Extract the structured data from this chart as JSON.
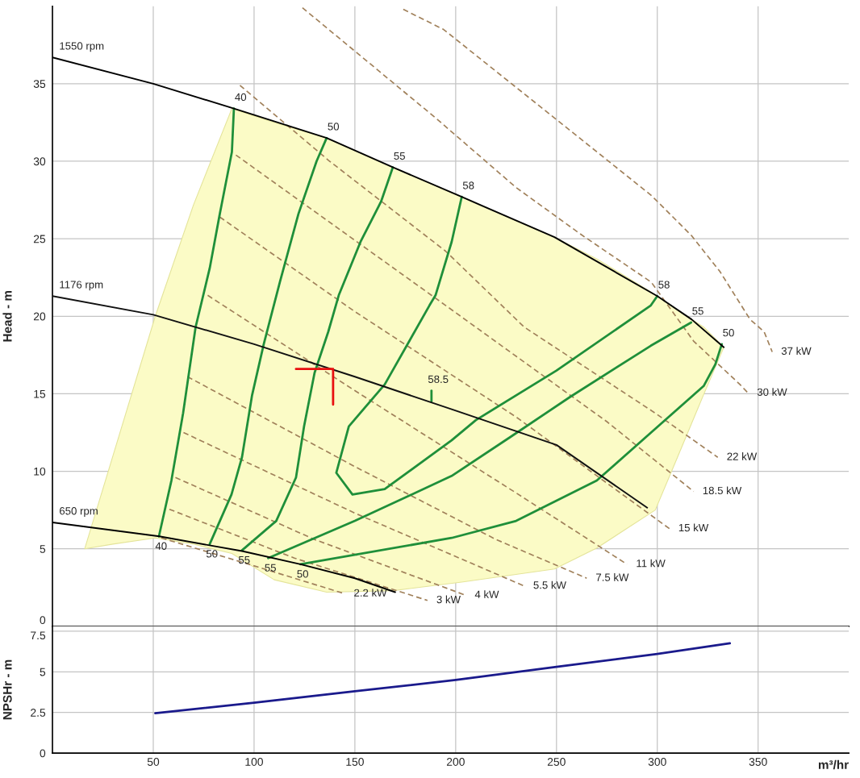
{
  "chart_data": [
    {
      "type": "line",
      "ylabel": "Head - m",
      "xlim": [
        0,
        395
      ],
      "ylim": [
        0,
        40
      ],
      "xticks": [
        50,
        100,
        150,
        200,
        250,
        300,
        350
      ],
      "yticks": [
        0,
        5,
        10,
        15,
        20,
        25,
        30,
        35
      ],
      "tick_labels": "y",
      "grid": true,
      "series": [
        {
          "type": "area",
          "color": "#fbfbc6",
          "x": [
            16,
            30,
            51,
            70,
            89,
            110,
            136,
            169,
            203,
            249,
            270,
            299,
            310,
            323,
            333
          ],
          "values": [
            null,
            null,
            null,
            null,
            null,
            null,
            null,
            null,
            null,
            null,
            null,
            null,
            null,
            null,
            null
          ],
          "upper": [
            5.0,
            11,
            20,
            27.2,
            33.4,
            32.5,
            31.5,
            29.6,
            27.7,
            25.1,
            23.7,
            21.4,
            20.4,
            19.3,
            18.0
          ],
          "lower": [
            5.0,
            5.3,
            5.7,
            5.3,
            4.7,
            3.0,
            2.2,
            2.3,
            2.85,
            3.7,
            5.05,
            7.5,
            10.9,
            14.95,
            18.0
          ]
        },
        {
          "type": "line",
          "color": "#a0805a",
          "line_style": "dashed",
          "x": [
            174,
            194,
            247,
            297,
            317,
            331,
            346,
            353,
            357
          ],
          "values": [
            39.8,
            38.5,
            33.0,
            27.8,
            25.2,
            22.9,
            19.8,
            19.0,
            17.7
          ]
        },
        {
          "type": "line",
          "color": "#a0805a",
          "line_style": "dashed",
          "x": [
            124,
            190,
            230,
            263,
            297,
            318,
            341,
            345
          ],
          "values": [
            39.9,
            32.8,
            28.3,
            25.2,
            22.2,
            18.4,
            15.6,
            15.05
          ]
        },
        {
          "type": "line",
          "color": "#a0805a",
          "line_style": "dashed",
          "x": [
            93,
            137,
            195,
            234,
            299,
            330
          ],
          "values": [
            34.9,
            30.05,
            24.2,
            19.3,
            13.75,
            10.9
          ]
        },
        {
          "type": "line",
          "color": "#a0805a",
          "line_style": "dashed",
          "x": [
            91,
            195,
            275,
            318
          ],
          "values": [
            30.4,
            20.7,
            13.2,
            8.7
          ]
        },
        {
          "type": "line",
          "color": "#a0805a",
          "line_style": "dashed",
          "x": [
            83,
            150,
            230,
            306
          ],
          "values": [
            26.4,
            20.3,
            13.5,
            6.3
          ]
        },
        {
          "type": "line",
          "color": "#a0805a",
          "line_style": "dashed",
          "x": [
            77,
            150,
            230,
            285
          ],
          "values": [
            21.35,
            15.2,
            8.6,
            4.0
          ]
        },
        {
          "type": "line",
          "color": "#a0805a",
          "line_style": "dashed",
          "x": [
            67,
            150,
            220,
            265
          ],
          "values": [
            16.1,
            10.3,
            5.6,
            3.1
          ]
        },
        {
          "type": "line",
          "color": "#a0805a",
          "line_style": "dashed",
          "x": [
            65,
            150,
            234
          ],
          "values": [
            12.5,
            7.3,
            2.6
          ]
        },
        {
          "type": "line",
          "color": "#a0805a",
          "line_style": "dashed",
          "x": [
            61,
            130,
            205
          ],
          "values": [
            9.6,
            5.6,
            2.0
          ]
        },
        {
          "type": "line",
          "color": "#a0805a",
          "line_style": "dashed",
          "x": [
            58,
            120,
            186
          ],
          "values": [
            7.55,
            4.4,
            1.67
          ]
        },
        {
          "type": "line",
          "color": "#a0805a",
          "line_style": "dashed",
          "x": [
            54,
            100,
            145
          ],
          "values": [
            5.7,
            3.9,
            2.1
          ]
        },
        {
          "type": "line",
          "color": "#1f8f3a",
          "x": [
            90,
            89,
            83,
            78,
            71,
            64.8,
            59,
            52.8
          ],
          "values": [
            33.4,
            30.6,
            26.6,
            23.1,
            19.3,
            13.75,
            9.4,
            5.8
          ]
        },
        {
          "type": "line",
          "color": "#1f8f3a",
          "x": [
            136,
            131,
            122,
            112.8,
            104.8,
            99,
            94,
            88.8,
            78
          ],
          "values": [
            31.5,
            30.0,
            26.6,
            22.2,
            18.2,
            14.9,
            10.9,
            8.5,
            5.3
          ]
        },
        {
          "type": "line",
          "color": "#1f8f3a",
          "x": [
            168.8,
            163,
            152.8,
            142,
            136.8,
            130,
            124.8,
            120.8,
            111,
            94
          ],
          "values": [
            29.6,
            27.4,
            24.8,
            21.35,
            19.0,
            16.35,
            12.9,
            9.6,
            6.8,
            4.9
          ]
        },
        {
          "type": "line",
          "color": "#1f8f3a",
          "x": [
            203,
            198,
            190,
            187,
            164.8,
            147,
            140.8,
            148.8,
            164.8,
            198,
            210,
            250,
            296.8,
            300
          ],
          "values": [
            27.7,
            24.8,
            21.35,
            20.7,
            15.6,
            12.9,
            9.9,
            8.5,
            8.85,
            12.0,
            13.3,
            16.5,
            20.7,
            21.3
          ]
        },
        {
          "type": "line",
          "color": "#1f8f3a",
          "x": [
            107,
            150,
            198,
            227,
            256.8,
            296.8,
            316.8
          ],
          "values": [
            4.4,
            6.8,
            9.7,
            12.2,
            14.8,
            18.1,
            19.6
          ]
        },
        {
          "type": "line",
          "color": "#1f8f3a",
          "x": [
            123,
            198,
            230,
            270,
            303,
            323,
            328.8,
            332
          ],
          "values": [
            4.0,
            5.7,
            6.8,
            9.4,
            13.2,
            15.5,
            16.9,
            18.2
          ]
        },
        {
          "type": "line",
          "color": "#1f8f3a",
          "x": [
            188,
            188
          ],
          "values": [
            15.2,
            14.5
          ]
        },
        {
          "type": "line",
          "color": "#000000",
          "x": [
            0,
            50,
            90,
            136,
            169,
            203,
            249,
            300,
            317,
            333
          ],
          "values": [
            36.7,
            35.0,
            33.4,
            31.5,
            29.6,
            27.7,
            25.1,
            21.3,
            19.8,
            18.0
          ]
        },
        {
          "type": "line",
          "color": "#111111",
          "x": [
            0,
            50,
            100,
            150,
            198,
            250,
            295
          ],
          "values": [
            21.3,
            20.1,
            18.2,
            16.1,
            14.0,
            11.7,
            7.65
          ]
        },
        {
          "type": "line",
          "color": "#000000",
          "x": [
            0,
            53,
            94,
            123,
            150,
            170
          ],
          "values": [
            6.7,
            5.8,
            4.85,
            4.0,
            3.1,
            2.2
          ]
        },
        {
          "type": "line",
          "color": "#e81010",
          "x": [
            120.8,
            139.2,
            139.2
          ],
          "values": [
            16.6,
            16.6,
            14.3
          ]
        }
      ],
      "annotations": [
        {
          "text": "1550 rpm",
          "x": 0,
          "y": 36.7
        },
        {
          "text": "1176 rpm",
          "x": 0,
          "y": 21.3
        },
        {
          "text": "650 rpm",
          "x": 0,
          "y": 6.7
        },
        {
          "text": "40",
          "x": 90,
          "y": 33.4
        },
        {
          "text": "50",
          "x": 136,
          "y": 31.5
        },
        {
          "text": "55",
          "x": 168.8,
          "y": 29.6
        },
        {
          "text": "58",
          "x": 203,
          "y": 27.7
        },
        {
          "text": "58",
          "x": 300,
          "y": 21.3
        },
        {
          "text": "55",
          "x": 316.8,
          "y": 19.6
        },
        {
          "text": "50",
          "x": 332,
          "y": 18.2
        },
        {
          "text": "58.5",
          "x": 188,
          "y": 15.2
        },
        {
          "text": "40",
          "x": 52.8,
          "y": 5.8
        },
        {
          "text": "50",
          "x": 78,
          "y": 5.3
        },
        {
          "text": "55",
          "x": 94,
          "y": 4.9
        },
        {
          "text": "55",
          "x": 107,
          "y": 4.4
        },
        {
          "text": "50",
          "x": 123,
          "y": 4.0
        },
        {
          "text": "2.2 kW",
          "x": 145,
          "y": 2.1
        },
        {
          "text": "3 kW",
          "x": 186,
          "y": 1.67
        },
        {
          "text": "4 kW",
          "x": 205,
          "y": 2.0
        },
        {
          "text": "5.5 kW",
          "x": 234,
          "y": 2.6
        },
        {
          "text": "7.5 kW",
          "x": 265,
          "y": 3.1
        },
        {
          "text": "11 kW",
          "x": 285,
          "y": 4.0
        },
        {
          "text": "15 kW",
          "x": 306,
          "y": 6.3
        },
        {
          "text": "18.5 kW",
          "x": 318,
          "y": 8.7
        },
        {
          "text": "22 kW",
          "x": 330,
          "y": 10.9
        },
        {
          "text": "30 kW",
          "x": 345,
          "y": 15.05
        },
        {
          "text": "37 kW",
          "x": 357,
          "y": 17.7
        }
      ]
    },
    {
      "type": "line",
      "ylabel": "NPSHr - m",
      "xlabel": "m³/hr",
      "xlim": [
        0,
        395
      ],
      "ylim": [
        0,
        7.8
      ],
      "xticks": [
        50,
        100,
        150,
        200,
        250,
        300,
        350
      ],
      "yticks": [
        0,
        2.5,
        5,
        7.5
      ],
      "grid": true,
      "series": [
        {
          "color": "#1a1a8c",
          "x": [
            51,
            100,
            150,
            200,
            250,
            300,
            336
          ],
          "values": [
            2.45,
            3.1,
            3.8,
            4.5,
            5.3,
            6.1,
            6.75
          ]
        }
      ]
    }
  ]
}
